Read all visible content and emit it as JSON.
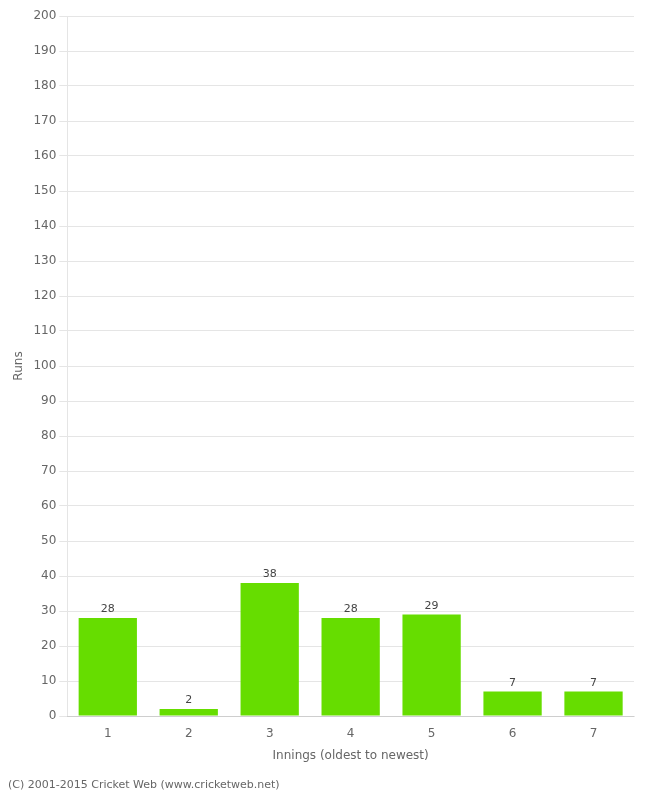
{
  "chart_data": {
    "type": "bar",
    "categories": [
      "1",
      "2",
      "3",
      "4",
      "5",
      "6",
      "7"
    ],
    "values": [
      28,
      2,
      38,
      28,
      29,
      7,
      7
    ],
    "color": "#66dd00",
    "x_label": "Innings (oldest to newest)",
    "y_label": "Runs",
    "ylim": [
      0,
      200
    ],
    "yticks": [
      0,
      10,
      20,
      30,
      40,
      50,
      60,
      70,
      80,
      90,
      100,
      110,
      120,
      130,
      140,
      150,
      160,
      170,
      180,
      190,
      200
    ],
    "grid": true,
    "data_labels": true,
    "annotations": [
      "(C) 2001-2015 Cricket Web (www.cricketweb.net)"
    ]
  }
}
